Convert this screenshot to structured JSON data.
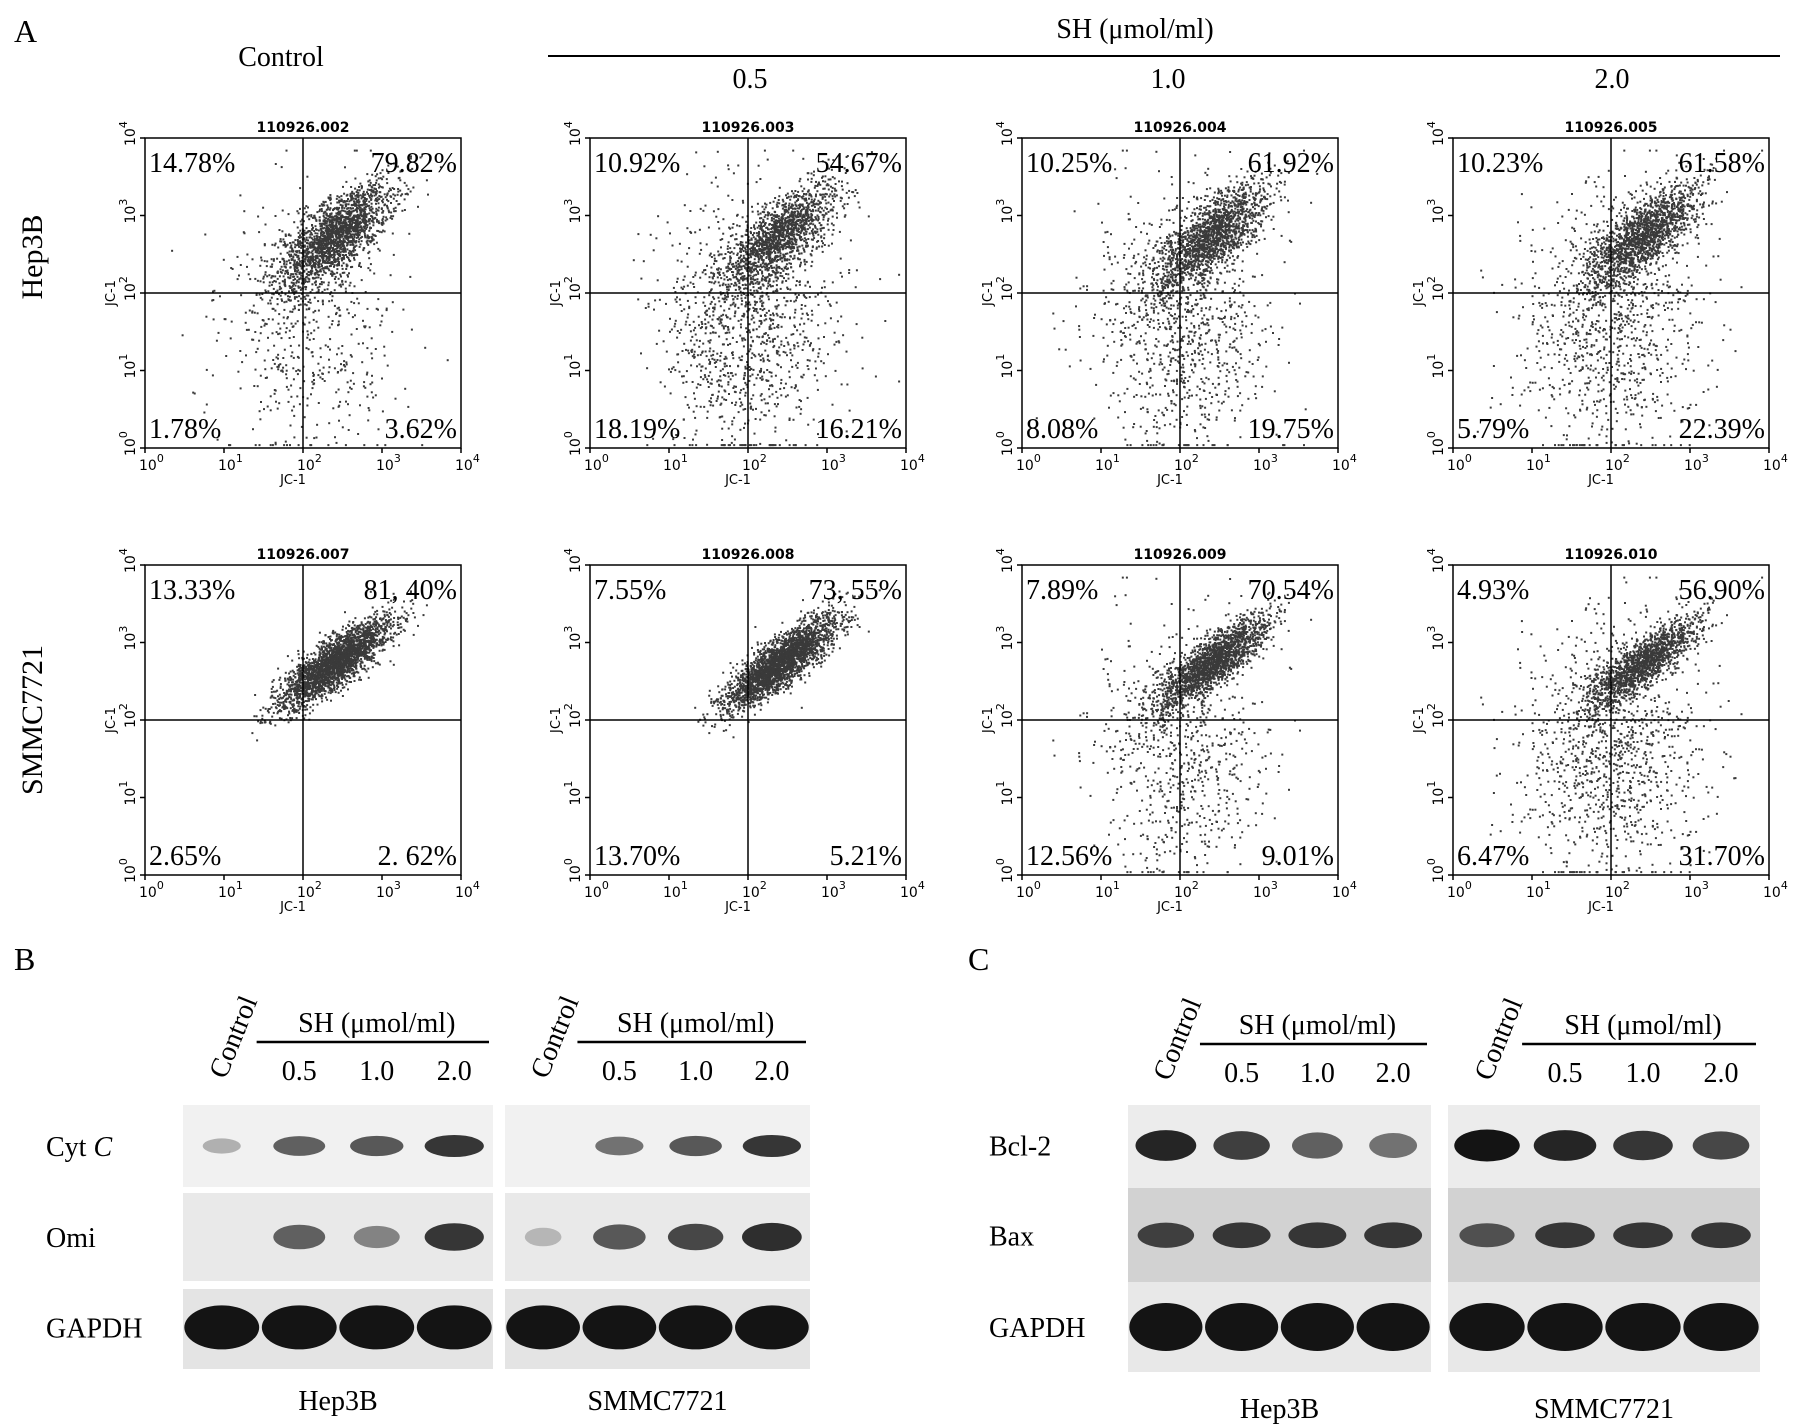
{
  "panel_a": {
    "letter": "A",
    "control_label": "Control",
    "treatment_label": "SH (μmol/ml)",
    "doses": [
      "0.5",
      "1.0",
      "2.0"
    ],
    "row_labels": [
      "Hep3B",
      "SMMC7721"
    ],
    "axis_label": "JC-1",
    "tick_labels": [
      "0",
      "1",
      "2",
      "3",
      "4"
    ]
  },
  "chart_data": [
    {
      "type": "scatter",
      "row": "Hep3B",
      "plots": [
        {
          "dose": "Control",
          "file": "110926.002",
          "quadrants": {
            "upper_left": "14.78%",
            "upper_right": "79.82%",
            "lower_left": "1.78%",
            "lower_right": "3.62%"
          }
        },
        {
          "dose": "0.5",
          "file": "110926.003",
          "quadrants": {
            "upper_left": "10.92%",
            "upper_right": "54.67%",
            "lower_left": "18.19%",
            "lower_right": "16.21%"
          }
        },
        {
          "dose": "1.0",
          "file": "110926.004",
          "quadrants": {
            "upper_left": "10.25%",
            "upper_right": "61.92%",
            "lower_left": "8.08%",
            "lower_right": "19.75%"
          }
        },
        {
          "dose": "2.0",
          "file": "110926.005",
          "quadrants": {
            "upper_left": "10.23%",
            "upper_right": "61.58%",
            "lower_left": "5.79%",
            "lower_right": "22.39%"
          }
        }
      ],
      "xlabel": "JC-1",
      "ylabel": "JC-1",
      "xscale": "log",
      "yscale": "log",
      "xlim": [
        1,
        10000
      ],
      "ylim": [
        1,
        10000
      ],
      "gate": [
        100,
        100
      ]
    },
    {
      "type": "scatter",
      "row": "SMMC7721",
      "plots": [
        {
          "dose": "Control",
          "file": "110926.007",
          "quadrants": {
            "upper_left": "13.33%",
            "upper_right": "81, 40%",
            "lower_left": "2.65%",
            "lower_right": "2. 62%"
          }
        },
        {
          "dose": "0.5",
          "file": "110926.008",
          "quadrants": {
            "upper_left": "7.55%",
            "upper_right": "73, 55%",
            "lower_left": "13.70%",
            "lower_right": "5.21%"
          }
        },
        {
          "dose": "1.0",
          "file": "110926.009",
          "quadrants": {
            "upper_left": "7.89%",
            "upper_right": "70.54%",
            "lower_left": "12.56%",
            "lower_right": "9.01%"
          }
        },
        {
          "dose": "2.0",
          "file": "110926.010",
          "quadrants": {
            "upper_left": "4.93%",
            "upper_right": "56.90%",
            "lower_left": "6.47%",
            "lower_right": "31.70%"
          }
        }
      ],
      "xlabel": "JC-1",
      "ylabel": "JC-1",
      "xscale": "log",
      "yscale": "log",
      "xlim": [
        1,
        10000
      ],
      "ylim": [
        1,
        10000
      ],
      "gate": [
        100,
        100
      ]
    }
  ],
  "panel_b": {
    "letter": "B",
    "lane_header": {
      "control": "Control",
      "treatment": "SH (μmol/ml)",
      "doses": [
        "0.5",
        "1.0",
        "2.0"
      ]
    },
    "proteins": [
      "Cyt C",
      "Omi",
      "GAPDH"
    ],
    "protein_cytc_main": "Cyt",
    "protein_cytc_italic": "C",
    "cell_lines": [
      "Hep3B",
      "SMMC7721"
    ],
    "band_levels": {
      "Hep3B": {
        "Cyt C": [
          0.08,
          0.55,
          0.6,
          0.8
        ],
        "Omi": [
          0.0,
          0.55,
          0.35,
          0.8
        ],
        "GAPDH": [
          1,
          1,
          1,
          1
        ]
      },
      "SMMC7721": {
        "Cyt C": [
          0.0,
          0.45,
          0.6,
          0.8
        ],
        "Omi": [
          0.05,
          0.6,
          0.7,
          0.85
        ],
        "GAPDH": [
          1,
          1,
          1,
          1
        ]
      }
    }
  },
  "panel_c": {
    "letter": "C",
    "lane_header": {
      "control": "Control",
      "treatment": "SH (μmol/ml)",
      "doses": [
        "0.5",
        "1.0",
        "2.0"
      ]
    },
    "proteins": [
      "Bcl-2",
      "Bax",
      "GAPDH"
    ],
    "cell_lines": [
      "Hep3B",
      "SMMC7721"
    ],
    "band_levels": {
      "Hep3B": {
        "Bcl-2": [
          0.9,
          0.75,
          0.55,
          0.45
        ],
        "Bax": [
          0.75,
          0.8,
          0.8,
          0.8
        ],
        "GAPDH": [
          1,
          1,
          1,
          1
        ]
      },
      "SMMC7721": {
        "Bcl-2": [
          1.0,
          0.9,
          0.8,
          0.7
        ],
        "Bax": [
          0.65,
          0.8,
          0.8,
          0.8
        ],
        "GAPDH": [
          1,
          1,
          1,
          1
        ]
      }
    }
  }
}
